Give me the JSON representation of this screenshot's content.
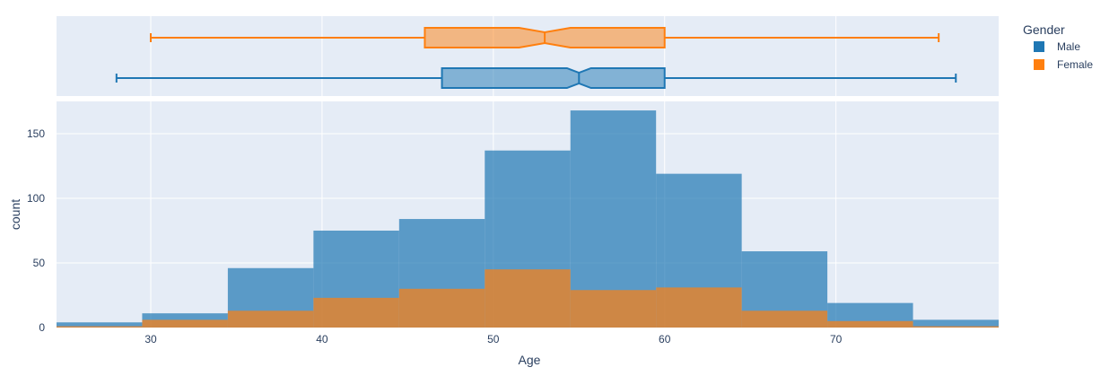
{
  "chart_data": {
    "type": "histogram",
    "subtype": "marginal-box",
    "xlabel": "Age",
    "ylabel": "count",
    "xlim": [
      24.5,
      79.5
    ],
    "ylim": [
      0,
      175
    ],
    "xticks": [
      30,
      40,
      50,
      60,
      70
    ],
    "yticks": [
      0,
      50,
      100,
      150
    ],
    "bins": [
      [
        24.5,
        29.5
      ],
      [
        29.5,
        34.5
      ],
      [
        34.5,
        39.5
      ],
      [
        39.5,
        44.5
      ],
      [
        44.5,
        49.5
      ],
      [
        49.5,
        54.5
      ],
      [
        54.5,
        59.5
      ],
      [
        59.5,
        64.5
      ],
      [
        64.5,
        69.5
      ],
      [
        69.5,
        74.5
      ],
      [
        74.5,
        79.5
      ]
    ],
    "barmode": "overlay",
    "series": [
      {
        "name": "Male",
        "color": "#1f77b4",
        "values": [
          4,
          11,
          46,
          75,
          84,
          137,
          168,
          119,
          59,
          19,
          6
        ]
      },
      {
        "name": "Female",
        "color": "#ff7f0e",
        "values": [
          1,
          6,
          13,
          23,
          30,
          45,
          29,
          31,
          13,
          5,
          1
        ]
      }
    ],
    "boxplots": [
      {
        "name": "Female",
        "color": "#ff7f0e",
        "min": 30,
        "q1": 46,
        "median": 53,
        "q3": 60,
        "max": 76,
        "notch_low": 51.5,
        "notch_high": 54.5
      },
      {
        "name": "Male",
        "color": "#1f77b4",
        "min": 28,
        "q1": 47,
        "median": 55,
        "q3": 60,
        "max": 77,
        "notch_low": 54.3,
        "notch_high": 55.7
      }
    ],
    "grid": true,
    "legend": {
      "title": "Gender",
      "position": "top-right"
    }
  }
}
